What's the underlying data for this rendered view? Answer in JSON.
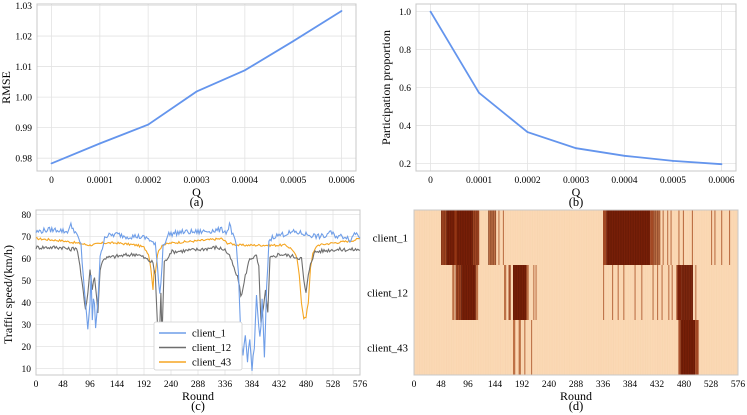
{
  "colors": {
    "line_blue": "#6495ed",
    "client_1": "#6f9ee8",
    "client_12": "#6e6e6e",
    "client_43": "#f5a623",
    "heat_bg": "#fbd9b5",
    "heat_dark": "#7a2008",
    "heat_mid": "#b05a2e"
  },
  "chart_data": [
    {
      "id": "a",
      "type": "line",
      "caption": "(a)",
      "xlabel": "Q",
      "ylabel": "RMSE",
      "x": [
        0,
        0.0001,
        0.0002,
        0.0003,
        0.0004,
        0.0005,
        0.0006
      ],
      "xtick_labels": [
        "0",
        "0.0001",
        "0.0002",
        "0.0003",
        "0.0004",
        "0.0005",
        "0.0006"
      ],
      "y": [
        0.9783,
        0.9848,
        0.991,
        1.0018,
        1.0088,
        1.0183,
        1.0282
      ],
      "yticks": [
        0.98,
        0.99,
        1.0,
        1.01,
        1.02,
        1.03
      ],
      "ytick_labels": [
        "0.98",
        "0.99",
        "1.00",
        "1.01",
        "1.02",
        "1.03"
      ],
      "xlim": [
        -3e-05,
        0.00063
      ],
      "ylim": [
        0.9758,
        1.0305
      ],
      "grid": true
    },
    {
      "id": "b",
      "type": "line",
      "caption": "(b)",
      "xlabel": "Q",
      "ylabel": "Participation proportion",
      "x": [
        0,
        0.0001,
        0.0002,
        0.0003,
        0.0004,
        0.0005,
        0.0006
      ],
      "xtick_labels": [
        "0",
        "0.0001",
        "0.0002",
        "0.0003",
        "0.0004",
        "0.0005",
        "0.0006"
      ],
      "y": [
        1.0,
        0.572,
        0.365,
        0.28,
        0.24,
        0.213,
        0.196
      ],
      "yticks": [
        0.2,
        0.4,
        0.6,
        0.8,
        1.0
      ],
      "ytick_labels": [
        "0.2",
        "0.4",
        "0.6",
        "0.8",
        "1.0"
      ],
      "xlim": [
        -3e-05,
        0.00063
      ],
      "ylim": [
        0.16,
        1.04
      ],
      "grid": true
    },
    {
      "id": "c",
      "type": "line",
      "caption": "(c)",
      "xlabel": "Round",
      "ylabel": "Traffic speed/(km/h)",
      "xticks": [
        0,
        48,
        96,
        144,
        192,
        240,
        288,
        336,
        384,
        432,
        480,
        528,
        576
      ],
      "xtick_labels": [
        "0",
        "48",
        "96",
        "144",
        "192",
        "240",
        "288",
        "336",
        "384",
        "432",
        "480",
        "528",
        "576"
      ],
      "yticks": [
        10,
        20,
        30,
        40,
        50,
        60,
        70,
        80
      ],
      "ytick_labels": [
        "10",
        "20",
        "30",
        "40",
        "50",
        "60",
        "70",
        "80"
      ],
      "xlim": [
        0,
        576
      ],
      "ylim": [
        7,
        82
      ],
      "legend_position": "center-left",
      "series": [
        {
          "name": "client_1",
          "knots": [
            [
              0,
              72
            ],
            [
              20,
              73
            ],
            [
              40,
              73
            ],
            [
              55,
              72
            ],
            [
              62,
              75
            ],
            [
              70,
              72
            ],
            [
              80,
              66
            ],
            [
              84,
              52
            ],
            [
              88,
              40
            ],
            [
              92,
              27
            ],
            [
              96,
              40
            ],
            [
              98,
              52
            ],
            [
              100,
              32
            ],
            [
              103,
              45
            ],
            [
              106,
              29
            ],
            [
              110,
              41
            ],
            [
              114,
              60
            ],
            [
              122,
              70
            ],
            [
              144,
              71
            ],
            [
              160,
              70
            ],
            [
              180,
              70
            ],
            [
              200,
              69
            ],
            [
              212,
              66
            ],
            [
              216,
              56
            ],
            [
              220,
              44
            ],
            [
              223,
              52
            ],
            [
              226,
              66
            ],
            [
              236,
              71
            ],
            [
              260,
              72
            ],
            [
              288,
              72
            ],
            [
              330,
              73
            ],
            [
              340,
              72
            ],
            [
              344,
              76
            ],
            [
              348,
              72
            ],
            [
              356,
              66
            ],
            [
              360,
              52
            ],
            [
              364,
              24
            ],
            [
              368,
              16
            ],
            [
              372,
              25
            ],
            [
              376,
              14
            ],
            [
              380,
              23
            ],
            [
              384,
              10
            ],
            [
              388,
              19
            ],
            [
              392,
              44
            ],
            [
              396,
              28
            ],
            [
              399,
              22
            ],
            [
              402,
              42
            ],
            [
              406,
              14
            ],
            [
              410,
              46
            ],
            [
              414,
              68
            ],
            [
              422,
              70
            ],
            [
              440,
              71
            ],
            [
              460,
              72
            ],
            [
              480,
              71
            ],
            [
              500,
              70
            ],
            [
              516,
              70
            ],
            [
              520,
              72
            ],
            [
              536,
              70
            ],
            [
              552,
              70
            ],
            [
              560,
              68
            ],
            [
              566,
              72
            ],
            [
              576,
              70
            ]
          ],
          "noise": 1.2
        },
        {
          "name": "client_12",
          "knots": [
            [
              0,
              65
            ],
            [
              48,
              65
            ],
            [
              60,
              64
            ],
            [
              72,
              65
            ],
            [
              76,
              60
            ],
            [
              80,
              52
            ],
            [
              84,
              45
            ],
            [
              88,
              37
            ],
            [
              92,
              44
            ],
            [
              96,
              55
            ],
            [
              100,
              46
            ],
            [
              104,
              52
            ],
            [
              110,
              36
            ],
            [
              114,
              55
            ],
            [
              120,
              60
            ],
            [
              144,
              61
            ],
            [
              180,
              62
            ],
            [
              208,
              58
            ],
            [
              212,
              52
            ],
            [
              216,
              30
            ],
            [
              219,
              22
            ],
            [
              222,
              44
            ],
            [
              224,
              24
            ],
            [
              228,
              58
            ],
            [
              240,
              63
            ],
            [
              288,
              64
            ],
            [
              320,
              65
            ],
            [
              336,
              64
            ],
            [
              346,
              60
            ],
            [
              354,
              54
            ],
            [
              360,
              50
            ],
            [
              364,
              43
            ],
            [
              368,
              46
            ],
            [
              372,
              52
            ],
            [
              380,
              60
            ],
            [
              392,
              61
            ],
            [
              396,
              56
            ],
            [
              400,
              30
            ],
            [
              404,
              38
            ],
            [
              408,
              45
            ],
            [
              412,
              35
            ],
            [
              416,
              60
            ],
            [
              432,
              62
            ],
            [
              456,
              61
            ],
            [
              472,
              60
            ],
            [
              476,
              50
            ],
            [
              480,
              44
            ],
            [
              484,
              52
            ],
            [
              488,
              58
            ],
            [
              496,
              63
            ],
            [
              528,
              64
            ],
            [
              576,
              64
            ]
          ],
          "noise": 0.9
        },
        {
          "name": "client_43",
          "knots": [
            [
              0,
              69
            ],
            [
              48,
              68
            ],
            [
              72,
              67
            ],
            [
              96,
              66
            ],
            [
              120,
              67
            ],
            [
              144,
              67
            ],
            [
              180,
              66
            ],
            [
              192,
              65
            ],
            [
              200,
              62
            ],
            [
              204,
              56
            ],
            [
              208,
              46
            ],
            [
              210,
              55
            ],
            [
              212,
              53
            ],
            [
              216,
              62
            ],
            [
              224,
              66
            ],
            [
              240,
              67
            ],
            [
              288,
              68
            ],
            [
              330,
              69
            ],
            [
              340,
              67
            ],
            [
              360,
              66
            ],
            [
              380,
              66
            ],
            [
              400,
              66
            ],
            [
              420,
              66
            ],
            [
              432,
              66
            ],
            [
              444,
              66
            ],
            [
              456,
              64
            ],
            [
              464,
              60
            ],
            [
              468,
              52
            ],
            [
              472,
              40
            ],
            [
              476,
              33
            ],
            [
              480,
              33
            ],
            [
              484,
              40
            ],
            [
              488,
              56
            ],
            [
              492,
              62
            ],
            [
              500,
              66
            ],
            [
              528,
              67
            ],
            [
              560,
              68
            ],
            [
              576,
              69
            ]
          ],
          "noise": 0.5
        }
      ]
    },
    {
      "id": "d",
      "type": "heatmap",
      "caption": "(d)",
      "xlabel": "Round",
      "xticks": [
        0,
        48,
        96,
        144,
        192,
        240,
        288,
        336,
        384,
        432,
        480,
        528,
        576
      ],
      "xtick_labels": [
        "0",
        "48",
        "96",
        "144",
        "192",
        "240",
        "288",
        "336",
        "384",
        "432",
        "480",
        "528",
        "576"
      ],
      "xlim": [
        0,
        576
      ],
      "rows": [
        {
          "name": "client_1",
          "segments": [
            [
              48,
              58,
              0.8
            ],
            [
              58,
              104,
              1.0
            ],
            [
              72,
              76,
              0.7
            ],
            [
              104,
              116,
              0.8
            ],
            [
              132,
              146,
              0.6
            ],
            [
              150,
              152,
              0.5
            ],
            [
              158,
              160,
              0.5
            ],
            [
              336,
              342,
              0.8
            ],
            [
              342,
              420,
              1.0
            ],
            [
              420,
              426,
              0.8
            ],
            [
              426,
              438,
              0.6
            ],
            [
              442,
              444,
              0.5
            ],
            [
              450,
              452,
              0.5
            ],
            [
              456,
              458,
              0.5
            ],
            [
              470,
              472,
              0.5
            ],
            [
              478,
              480,
              0.6
            ],
            [
              494,
              496,
              0.6
            ],
            [
              528,
              530,
              0.5
            ],
            [
              534,
              536,
              0.6
            ],
            [
              546,
              548,
              0.6
            ],
            [
              560,
              562,
              0.6
            ]
          ]
        },
        {
          "name": "client_12",
          "segments": [
            [
              68,
              72,
              0.6
            ],
            [
              74,
              84,
              0.8
            ],
            [
              84,
              110,
              1.0
            ],
            [
              110,
              114,
              0.6
            ],
            [
              160,
              164,
              0.6
            ],
            [
              168,
              172,
              0.7
            ],
            [
              176,
              200,
              1.0
            ],
            [
              200,
              204,
              0.6
            ],
            [
              212,
              214,
              0.5
            ],
            [
              216,
              218,
              0.5
            ],
            [
              336,
              338,
              0.5
            ],
            [
              352,
              354,
              0.5
            ],
            [
              362,
              364,
              0.5
            ],
            [
              372,
              374,
              0.5
            ],
            [
              392,
              394,
              0.5
            ],
            [
              404,
              406,
              0.5
            ],
            [
              424,
              426,
              0.5
            ],
            [
              432,
              434,
              0.5
            ],
            [
              440,
              442,
              0.5
            ],
            [
              452,
              454,
              0.5
            ],
            [
              458,
              460,
              0.5
            ],
            [
              466,
              468,
              0.6
            ],
            [
              468,
              476,
              1.0
            ],
            [
              476,
              496,
              0.9
            ],
            [
              500,
              502,
              0.5
            ]
          ]
        },
        {
          "name": "client_43",
          "segments": [
            [
              176,
              180,
              0.6
            ],
            [
              186,
              190,
              0.6
            ],
            [
              196,
              198,
              0.5
            ],
            [
              208,
              210,
              0.5
            ],
            [
              470,
              474,
              0.7
            ],
            [
              474,
              500,
              1.0
            ],
            [
              500,
              506,
              0.8
            ]
          ]
        }
      ]
    }
  ]
}
